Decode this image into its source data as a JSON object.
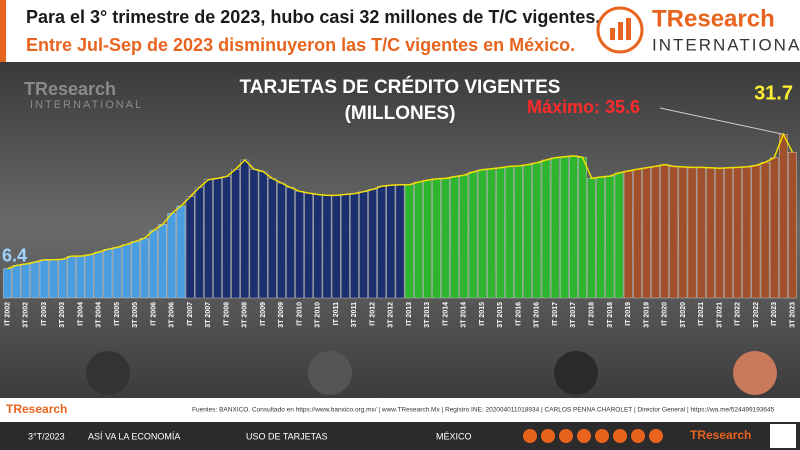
{
  "header": {
    "line1": "Para el 3° trimestre de 2023, hubo casi 32 millones de T/C vigentes.",
    "line2": "Entre Jul-Sep de 2023 disminuyeron las T/C vigentes en México.",
    "logo": "TResearch",
    "logo_sub": "INTERNATIONAL"
  },
  "chart_data": {
    "type": "bar",
    "title": "TARJETAS DE CRÉDITO VIGENTES",
    "subtitle": "(MILLONES)",
    "categories": [
      "IT 2002",
      null,
      "3T 2002",
      null,
      "IT 2003",
      null,
      "3T 2003",
      null,
      "IT 2004",
      null,
      "3T 2004",
      null,
      "IT 2005",
      null,
      "3T 2005",
      null,
      "IT 2006",
      null,
      "3T 2006",
      null,
      "IT 2007",
      null,
      "3T 2007",
      null,
      "IT 2008",
      null,
      "3T 2008",
      null,
      "IT 2009",
      null,
      "3T 2009",
      null,
      "IT 2010",
      null,
      "3T 2010",
      null,
      "IT 2011",
      null,
      "3T 2011",
      null,
      "IT 2012",
      null,
      "3T 2012",
      null,
      "IT 2013",
      null,
      "3T 2013",
      null,
      "IT 2014",
      null,
      "3T 2014",
      null,
      "IT 2015",
      null,
      "3T 2015",
      null,
      "IT 2016",
      null,
      "3T 2016",
      null,
      "IT 2017",
      null,
      "3T 2017",
      null,
      "IT 2018",
      null,
      "3T 2018",
      null,
      "IT 2019",
      null,
      "3T 2019",
      null,
      "IT 2020",
      null,
      "3T 2020",
      null,
      "IT 2021",
      null,
      "3T 2021",
      null,
      "IT 2022",
      null,
      "3T 2022",
      null,
      "IT 2023",
      null,
      "3T 2023"
    ],
    "values": [
      6.4,
      7.1,
      7.4,
      7.8,
      8.3,
      8.3,
      8.4,
      9.1,
      9.1,
      9.4,
      10.0,
      10.6,
      11.0,
      11.6,
      12.3,
      13.0,
      14.7,
      16.0,
      18.4,
      20.0,
      22.0,
      24.0,
      25.7,
      26.0,
      26.4,
      28.0,
      30.0,
      28.0,
      27.5,
      26.0,
      25.0,
      24.0,
      23.2,
      22.8,
      22.5,
      22.3,
      22.3,
      22.5,
      22.7,
      23.1,
      23.6,
      24.3,
      24.5,
      24.6,
      24.6,
      25.2,
      25.6,
      25.9,
      26.0,
      26.4,
      26.7,
      27.4,
      27.9,
      28.1,
      28.3,
      28.6,
      28.7,
      29.0,
      29.4,
      30.0,
      30.5,
      30.7,
      30.9,
      30.6,
      26.0,
      26.3,
      26.5,
      27.2,
      27.6,
      28.0,
      28.3,
      28.6,
      29.0,
      28.6,
      28.5,
      28.4,
      28.4,
      28.3,
      28.2,
      28.3,
      28.4,
      28.5,
      28.8,
      29.5,
      30.5,
      35.6,
      31.7
    ],
    "colors": [
      "#4a9ee0",
      "#4a9ee0",
      "#4a9ee0",
      "#4a9ee0",
      "#4a9ee0",
      "#4a9ee0",
      "#4a9ee0",
      "#4a9ee0",
      "#4a9ee0",
      "#4a9ee0",
      "#4a9ee0",
      "#4a9ee0",
      "#4a9ee0",
      "#4a9ee0",
      "#4a9ee0",
      "#4a9ee0",
      "#4a9ee0",
      "#4a9ee0",
      "#4a9ee0",
      "#4a9ee0",
      "#1c2f6e",
      "#1c2f6e",
      "#1c2f6e",
      "#1c2f6e",
      "#1c2f6e",
      "#1c2f6e",
      "#1c2f6e",
      "#1c2f6e",
      "#1c2f6e",
      "#1c2f6e",
      "#1c2f6e",
      "#1c2f6e",
      "#1c2f6e",
      "#1c2f6e",
      "#1c2f6e",
      "#1c2f6e",
      "#1c2f6e",
      "#1c2f6e",
      "#1c2f6e",
      "#1c2f6e",
      "#1c2f6e",
      "#1c2f6e",
      "#1c2f6e",
      "#1c2f6e",
      "#2db52d",
      "#2db52d",
      "#2db52d",
      "#2db52d",
      "#2db52d",
      "#2db52d",
      "#2db52d",
      "#2db52d",
      "#2db52d",
      "#2db52d",
      "#2db52d",
      "#2db52d",
      "#2db52d",
      "#2db52d",
      "#2db52d",
      "#2db52d",
      "#2db52d",
      "#2db52d",
      "#2db52d",
      "#2db52d",
      "#2db52d",
      "#2db52d",
      "#2db52d",
      "#2db52d",
      "#a0502a",
      "#a0502a",
      "#a0502a",
      "#a0502a",
      "#a0502a",
      "#a0502a",
      "#a0502a",
      "#a0502a",
      "#a0502a",
      "#a0502a",
      "#a0502a",
      "#a0502a",
      "#a0502a",
      "#a0502a",
      "#a0502a",
      "#a0502a",
      "#a0502a",
      "#a0502a",
      "#a0502a"
    ],
    "line_color": "#f0e000",
    "ylim": [
      0,
      40
    ],
    "max_label": "Máximo: 35.6"
  },
  "footer": {
    "source": "Fuentes: BANXICO. Consultado en https://www.banxico.org.mx/ | www.TResearch.Mx | Registro INE: 202004011018934 | CARLOS PENNA CHAROLET | Director General | https://wa.me/524499193645",
    "items": [
      "3°T/2023",
      "ASÍ VA LA ECONOMÍA",
      "USO DE TARJETAS",
      "MÉXICO"
    ],
    "logo": "TResearch"
  }
}
